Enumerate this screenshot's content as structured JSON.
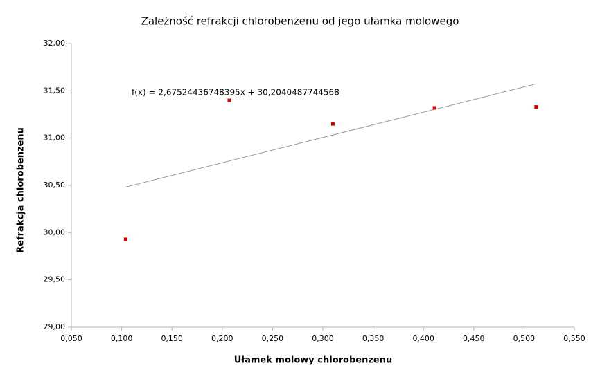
{
  "chart_data": {
    "type": "scatter",
    "title": "Zależność refrakcji chlorobenzenu od jego ułamka molowego",
    "x_label": "Ułamek molowy chlorobenzenu",
    "y_label": "Refrakcja chlorobenzenu",
    "series": [
      {
        "color": "#e00000",
        "x": [
          0.104,
          0.207,
          0.31,
          0.411,
          0.512
        ],
        "values": [
          29.93,
          31.4,
          31.15,
          31.32,
          31.33
        ]
      }
    ],
    "trendline": {
      "slope": 2.67524436748395,
      "intercept": 30.2040487744568,
      "color": "#999999",
      "label": "f(x) = 2,67524436748395x + 30,2040487744568"
    },
    "xlim": [
      0.05,
      0.55
    ],
    "xticks": [
      {
        "value": 0.05,
        "label": "0,050"
      },
      {
        "value": 0.1,
        "label": "0,100"
      },
      {
        "value": 0.15,
        "label": "0,150"
      },
      {
        "value": 0.2,
        "label": "0,200"
      },
      {
        "value": 0.25,
        "label": "0,250"
      },
      {
        "value": 0.3,
        "label": "0,300"
      },
      {
        "value": 0.35,
        "label": "0,350"
      },
      {
        "value": 0.4,
        "label": "0,400"
      },
      {
        "value": 0.45,
        "label": "0,450"
      },
      {
        "value": 0.5,
        "label": "0,500"
      },
      {
        "value": 0.55,
        "label": "0,550"
      }
    ],
    "ylim": [
      29,
      32
    ],
    "yticks": [
      {
        "value": 29,
        "label": "29,00"
      },
      {
        "value": 29.5,
        "label": "29,50"
      },
      {
        "value": 30,
        "label": "30,00"
      },
      {
        "value": 30.5,
        "label": "30,50"
      },
      {
        "value": 31,
        "label": "31,00"
      },
      {
        "value": 31.5,
        "label": "31,50"
      },
      {
        "value": 32,
        "label": "32,00"
      }
    ],
    "grid": false
  }
}
